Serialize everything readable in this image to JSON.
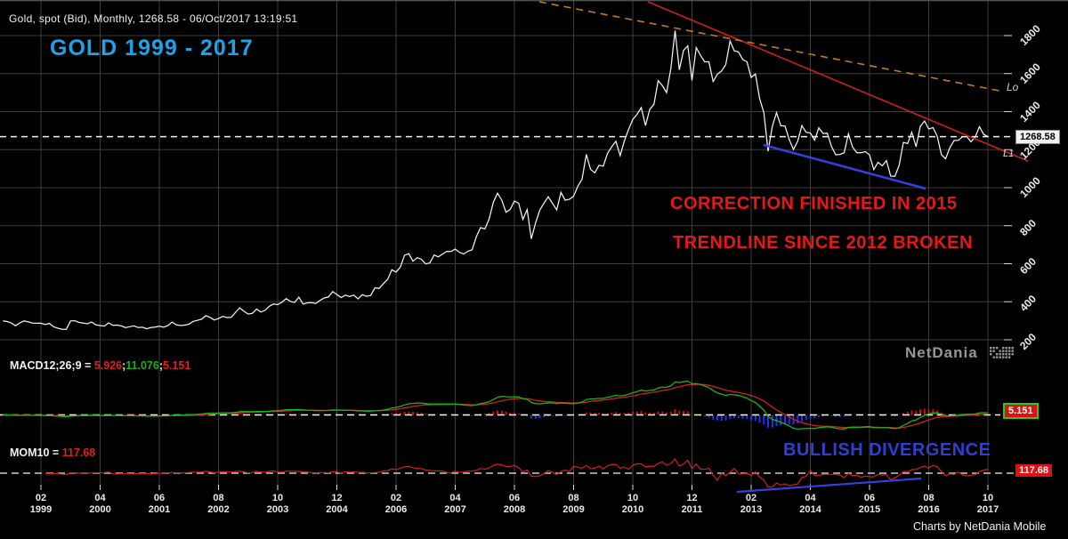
{
  "title": "Gold, spot (Bid), Monthly, 1268.58 - 06/Oct/2017 13:19:51",
  "heading": "GOLD 1999 - 2017",
  "annotations": {
    "correction": "CORRECTION FINISHED IN 2015",
    "trendline": "TRENDLINE SINCE 2012 BROKEN",
    "bullish": "BULLISH DIVERGENCE",
    "lo_label": "Lo",
    "l1_label": "L1"
  },
  "price_label": "1268.58",
  "macd_legend": {
    "name": "MACD12;26;9 = ",
    "v1": "5.926",
    "sep1": ";",
    "v2": "11.076",
    "sep2": ";",
    "v3": "5.151"
  },
  "macd_box": "5.151",
  "mom_legend": {
    "name": "MOM10 = ",
    "value": "117.68"
  },
  "mom_box": "117.68",
  "watermark": "NetDania",
  "footer": "Charts by NetDania Mobile",
  "colors": {
    "background": "#000000",
    "grid": "#3d3d3d",
    "top_border": "#6a6a6a",
    "tick": "#d8d8d8",
    "price_line": "#f2f2f2",
    "dashed_white": "#f5f5f5",
    "dashed_gray": "#cccccc",
    "heading_blue": "#1ca3e8",
    "annotation_red": "#e81717",
    "annotation_blue": "#2f3fd0",
    "macd_line_green": "#18b418",
    "macd_signal_red": "#d02020",
    "hist_positive": "#cc1111",
    "hist_negative": "#2233ee",
    "momentum_red": "#d02020",
    "label_box_red": "#dd1111",
    "label_box_green_border": "#22cc22",
    "axis_text": "#e9e9e9",
    "watermark_gray": "#969696"
  },
  "chart_data": {
    "type": "line",
    "title": "Gold, spot (Bid), Monthly, 1268.58 - 06/Oct/2017 13:19:51",
    "x_unit": "month",
    "start": "1998-05",
    "end": "2017-10",
    "last_price": 1268.58,
    "grid": true,
    "y_axis_side": "right",
    "y_ticks": [
      1800,
      1600,
      1400,
      1200,
      1000,
      800,
      600,
      400,
      200
    ],
    "x_ticks": [
      {
        "month": "02",
        "year": "1999"
      },
      {
        "month": "04",
        "year": "2000"
      },
      {
        "month": "06",
        "year": "2001"
      },
      {
        "month": "08",
        "year": "2002"
      },
      {
        "month": "10",
        "year": "2003"
      },
      {
        "month": "12",
        "year": "2004"
      },
      {
        "month": "02",
        "year": "2006"
      },
      {
        "month": "04",
        "year": "2007"
      },
      {
        "month": "06",
        "year": "2008"
      },
      {
        "month": "08",
        "year": "2009"
      },
      {
        "month": "10",
        "year": "2010"
      },
      {
        "month": "12",
        "year": "2011"
      },
      {
        "month": "02",
        "year": "2013"
      },
      {
        "month": "04",
        "year": "2014"
      },
      {
        "month": "06",
        "year": "2015"
      },
      {
        "month": "08",
        "year": "2016"
      },
      {
        "month": "10",
        "year": "2017"
      }
    ],
    "series": [
      {
        "name": "Gold spot monthly close (USD/oz)",
        "values": [
          299,
          296,
          288,
          274,
          289,
          299,
          294,
          288,
          287,
          287,
          280,
          286,
          268,
          261,
          255,
          255,
          299,
          300,
          291,
          288,
          284,
          293,
          278,
          275,
          272,
          289,
          276,
          277,
          273,
          264,
          269,
          273,
          264,
          266,
          258,
          264,
          267,
          271,
          266,
          274,
          293,
          279,
          275,
          277,
          282,
          297,
          302,
          308,
          327,
          318,
          304,
          312,
          323,
          317,
          318,
          343,
          368,
          350,
          335,
          339,
          362,
          346,
          355,
          376,
          388,
          385,
          398,
          416,
          402,
          396,
          424,
          388,
          394,
          395,
          391,
          407,
          420,
          425,
          453,
          438,
          422,
          435,
          428,
          435,
          415,
          437,
          429,
          433,
          473,
          470,
          495,
          517,
          568,
          556,
          582,
          644,
          653,
          613,
          632,
          623,
          599,
          604,
          646,
          636,
          651,
          665,
          664,
          677,
          660,
          651,
          666,
          673,
          743,
          790,
          783,
          834,
          923,
          971,
          934,
          871,
          886,
          930,
          918,
          833,
          885,
          731,
          815,
          882,
          919,
          952,
          917,
          883,
          975,
          934,
          939,
          955,
          1008,
          1045,
          1175,
          1097,
          1078,
          1118,
          1113,
          1179,
          1215,
          1244,
          1169,
          1246,
          1307,
          1359,
          1386,
          1421,
          1327,
          1411,
          1439,
          1563,
          1536,
          1500,
          1628,
          1826,
          1620,
          1722,
          1746,
          1564,
          1737,
          1696,
          1662,
          1662,
          1558,
          1597,
          1614,
          1648,
          1772,
          1720,
          1714,
          1674,
          1662,
          1580,
          1598,
          1469,
          1394,
          1192,
          1323,
          1395,
          1326,
          1324,
          1253,
          1201,
          1244,
          1326,
          1291,
          1288,
          1250,
          1315,
          1285,
          1287,
          1216,
          1173,
          1175,
          1184,
          1283,
          1213,
          1184,
          1184,
          1190,
          1172,
          1095,
          1134,
          1115,
          1142,
          1061,
          1060,
          1118,
          1238,
          1232,
          1292,
          1215,
          1322,
          1351,
          1309,
          1316,
          1272,
          1173,
          1152,
          1211,
          1248,
          1249,
          1268,
          1269,
          1241,
          1267,
          1321,
          1280,
          1268.58
        ]
      }
    ],
    "indicators": {
      "macd": {
        "label": "MACD12;26;9",
        "current": [
          5.926,
          11.076,
          5.151
        ]
      },
      "momentum": {
        "label": "MOM10",
        "current": 117.68
      }
    },
    "trendlines": [
      {
        "name": "broken-2012-trendline",
        "color": "#cc2020",
        "style": "solid",
        "width": 1.6,
        "x1": 728,
        "y1": 2,
        "x2": 1155,
        "y2": 181
      },
      {
        "name": "upper-channel-line",
        "color": "#c47a1e",
        "style": "dashed",
        "width": 1.6,
        "x1": 606,
        "y1": 2,
        "x2": 1128,
        "y2": 103
      },
      {
        "name": "correction-low-trendline",
        "color": "#3440e0",
        "style": "solid",
        "width": 2.5,
        "x1": 858,
        "y1": 163,
        "x2": 1040,
        "y2": 212
      },
      {
        "name": "momentum-divergence-trendline",
        "color": "#3440e0",
        "style": "solid",
        "width": 2.2,
        "x1": 828,
        "y1": 553,
        "x2": 1035,
        "y2": 538
      }
    ]
  }
}
